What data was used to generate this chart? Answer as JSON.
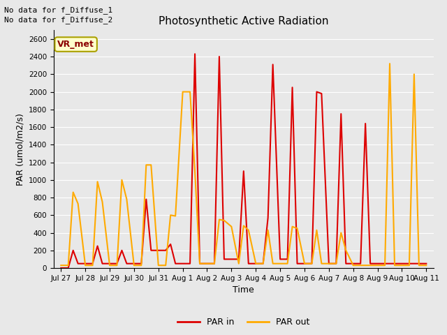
{
  "title": "Photosynthetic Active Radiation",
  "xlabel": "Time",
  "ylabel": "PAR (umol/m2/s)",
  "ylim": [
    0,
    2700
  ],
  "par_in_color": "#dd0000",
  "par_out_color": "#ffaa00",
  "xtick_labels": [
    "Jul 27",
    "Jul 28",
    "Jul 29",
    "Jul 30",
    "Jul 31",
    "Aug 1",
    "Aug 2",
    "Aug 3",
    "Aug 4",
    "Aug 5",
    "Aug 6",
    "Aug 7",
    "Aug 8",
    "Aug 9",
    "Aug 10",
    "Aug 11"
  ],
  "xtick_pos": [
    0,
    1,
    2,
    3,
    4,
    5,
    6,
    7,
    8,
    9,
    10,
    11,
    12,
    13,
    14,
    15
  ],
  "text_annotations": [
    "No data for f_Diffuse_1",
    "No data for f_Diffuse_2"
  ],
  "vr_met_label": "VR_met",
  "line_width": 1.5,
  "bg_color": "#e8e8e8",
  "grid_color": "#ffffff",
  "x_in": [
    0.0,
    0.3,
    0.5,
    0.7,
    1.0,
    1.3,
    1.5,
    1.7,
    2.0,
    2.3,
    2.5,
    2.7,
    3.0,
    3.3,
    3.5,
    3.7,
    4.0,
    4.3,
    4.5,
    4.7,
    5.0,
    5.3,
    5.5,
    5.7,
    6.0,
    6.3,
    6.5,
    6.7,
    7.0,
    7.3,
    7.5,
    7.7,
    8.0,
    8.3,
    8.5,
    8.7,
    9.0,
    9.3,
    9.5,
    9.7,
    10.0,
    10.3,
    10.5,
    10.7,
    11.0,
    11.3,
    11.5,
    11.7,
    12.0,
    12.3,
    12.5,
    12.7,
    13.0,
    14.0,
    14.5,
    15.0
  ],
  "y_in": [
    0,
    0,
    200,
    50,
    50,
    50,
    250,
    50,
    50,
    50,
    200,
    50,
    50,
    50,
    780,
    200,
    200,
    200,
    270,
    50,
    50,
    50,
    2430,
    50,
    50,
    50,
    2400,
    100,
    100,
    100,
    1100,
    50,
    50,
    50,
    570,
    2310,
    100,
    100,
    2050,
    50,
    50,
    50,
    2000,
    1980,
    50,
    50,
    1750,
    50,
    50,
    50,
    1640,
    50,
    50,
    50,
    50,
    50
  ],
  "x_out": [
    0.0,
    0.3,
    0.5,
    0.7,
    1.0,
    1.3,
    1.5,
    1.7,
    2.0,
    2.3,
    2.5,
    2.7,
    3.0,
    3.3,
    3.5,
    3.7,
    4.0,
    4.3,
    4.5,
    4.7,
    5.0,
    5.3,
    5.5,
    5.7,
    6.0,
    6.3,
    6.5,
    6.7,
    7.0,
    7.3,
    7.5,
    7.7,
    8.0,
    8.3,
    8.5,
    8.7,
    9.0,
    9.3,
    9.5,
    9.7,
    10.0,
    10.3,
    10.5,
    10.7,
    11.0,
    11.3,
    11.5,
    11.7,
    12.0,
    12.3,
    12.5,
    12.7,
    13.0,
    13.3,
    13.5,
    13.7,
    14.0,
    14.3,
    14.5,
    14.7,
    15.0
  ],
  "y_out": [
    30,
    30,
    860,
    730,
    30,
    30,
    980,
    750,
    30,
    30,
    1000,
    780,
    30,
    30,
    1170,
    1170,
    30,
    30,
    600,
    590,
    2000,
    2000,
    1090,
    50,
    50,
    50,
    550,
    540,
    470,
    50,
    480,
    430,
    50,
    50,
    430,
    50,
    50,
    50,
    470,
    450,
    50,
    50,
    430,
    50,
    50,
    50,
    400,
    200,
    30,
    30,
    30,
    30,
    30,
    30,
    2320,
    30,
    30,
    30,
    2200,
    30,
    30
  ]
}
